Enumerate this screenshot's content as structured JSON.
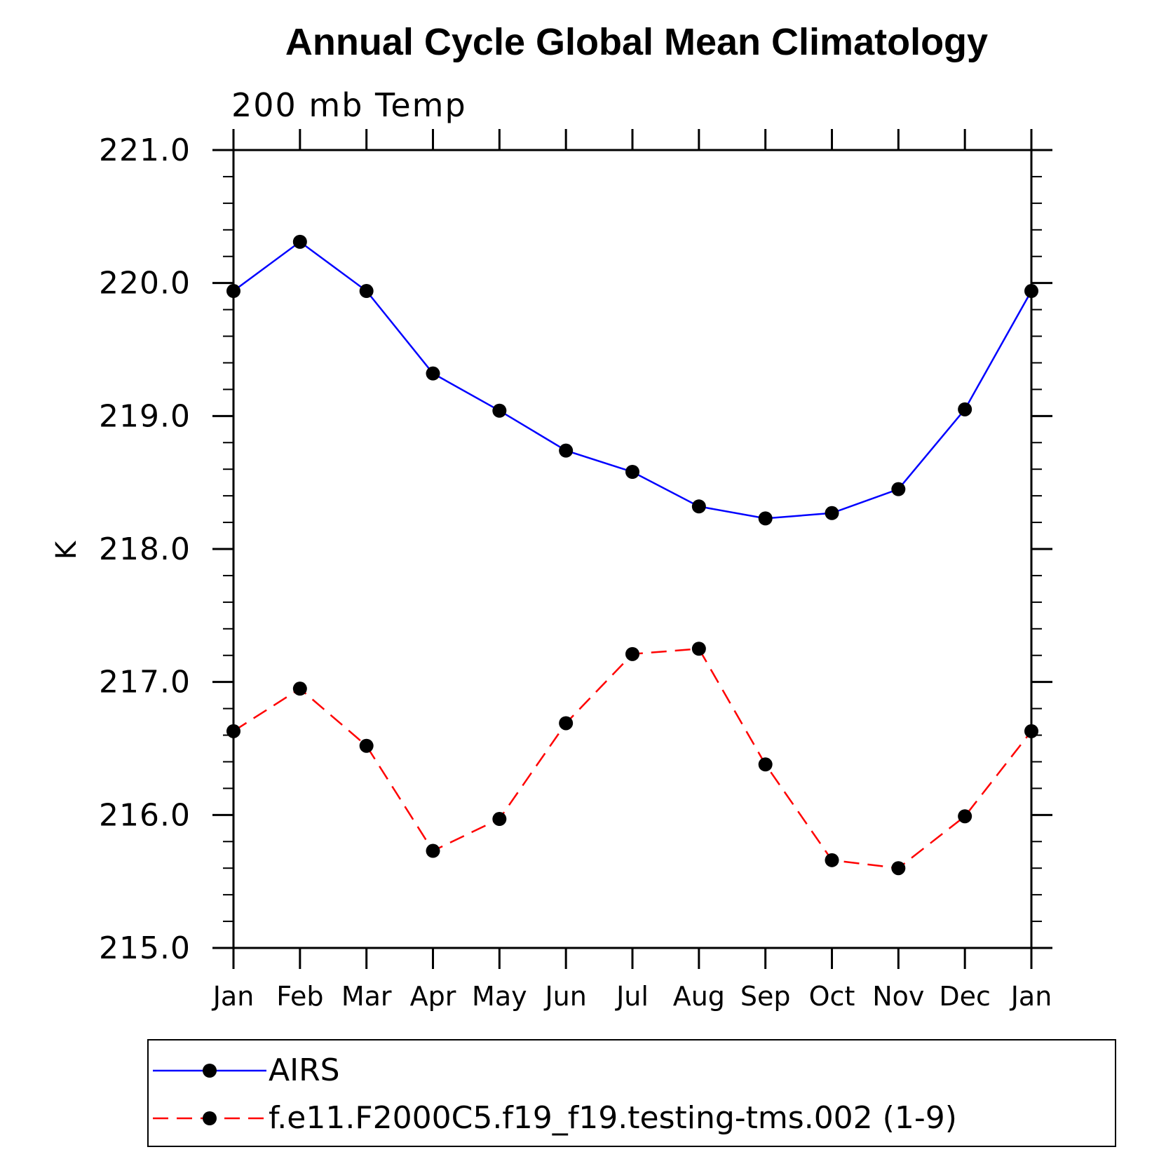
{
  "chart_data": {
    "type": "line",
    "title": "Annual Cycle Global Mean Climatology",
    "subtitle": "200 mb Temp",
    "ylabel": "K",
    "xlabel": "",
    "categories": [
      "Jan",
      "Feb",
      "Mar",
      "Apr",
      "May",
      "Jun",
      "Jul",
      "Aug",
      "Sep",
      "Oct",
      "Nov",
      "Dec",
      "Jan"
    ],
    "ylim": [
      215.0,
      221.0
    ],
    "yticks": [
      "215.0",
      "216.0",
      "217.0",
      "218.0",
      "219.0",
      "220.0",
      "221.0"
    ],
    "grid": false,
    "legend_position": "bottom",
    "series": [
      {
        "name": "AIRS",
        "color": "#0000ff",
        "dash": "solid",
        "marker": "filled-circle",
        "values": [
          219.94,
          220.31,
          219.94,
          219.32,
          219.04,
          218.74,
          218.58,
          218.32,
          218.23,
          218.27,
          218.45,
          219.05,
          219.94
        ]
      },
      {
        "name": "f.e11.F2000C5.f19_f19.testing-tms.002 (1-9)",
        "color": "#ff0000",
        "dash": "dashed",
        "marker": "filled-circle",
        "values": [
          216.63,
          216.95,
          216.52,
          215.73,
          215.97,
          216.69,
          217.21,
          217.25,
          216.38,
          215.66,
          215.6,
          215.99,
          216.63
        ]
      }
    ]
  }
}
